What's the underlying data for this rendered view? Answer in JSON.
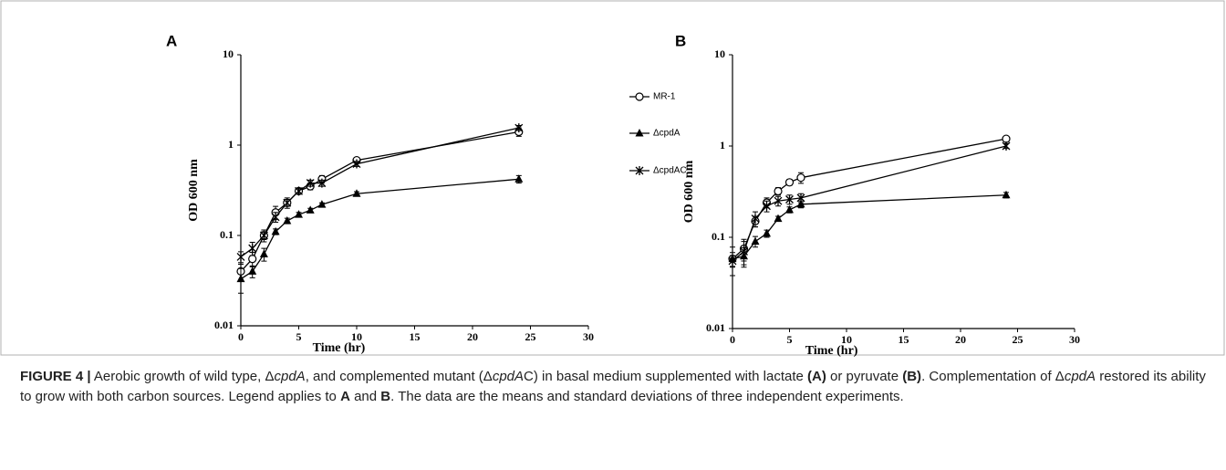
{
  "chart_data": [
    {
      "type": "line",
      "panel": "A",
      "xlabel": "Time (hr)",
      "ylabel": "OD 600 nm",
      "yscale": "log",
      "xlim": [
        0,
        30
      ],
      "xticks": [
        0,
        5,
        10,
        15,
        20,
        25,
        30
      ],
      "ylim": [
        0.01,
        10
      ],
      "yticks": [
        0.01,
        0.1,
        1,
        10
      ],
      "x": [
        0,
        1,
        2,
        3,
        4,
        5,
        6,
        7,
        10,
        24
      ],
      "legend": "right",
      "series": [
        {
          "name": "MR-1",
          "color": "#000000",
          "marker": "circle",
          "values": [
            0.04,
            0.055,
            0.1,
            0.18,
            0.23,
            0.31,
            0.35,
            0.42,
            0.68,
            1.4
          ],
          "errors": [
            0.008,
            0.01,
            0.015,
            0.03,
            0.03,
            0.02,
            0.03,
            0.04,
            0.05,
            0.15
          ]
        },
        {
          "name": "ΔcpdA",
          "color": "#000000",
          "marker": "triangle",
          "values": [
            0.033,
            0.04,
            0.062,
            0.11,
            0.145,
            0.17,
            0.19,
            0.22,
            0.29,
            0.42
          ],
          "errors": [
            0.01,
            0.006,
            0.01,
            0.008,
            0.01,
            0.01,
            0.01,
            0.01,
            0.015,
            0.04
          ]
        },
        {
          "name": "ΔcpdAC",
          "color": "#000000",
          "marker": "star",
          "values": [
            0.058,
            0.072,
            0.1,
            0.16,
            0.23,
            0.31,
            0.38,
            0.38,
            0.62,
            1.55
          ],
          "errors": [
            0.008,
            0.012,
            0.01,
            0.02,
            0.02,
            0.02,
            0.03,
            0.03,
            0.04,
            0.1
          ]
        }
      ]
    },
    {
      "type": "line",
      "panel": "B",
      "xlabel": "Time (hr)",
      "ylabel": "OD 600 nm",
      "yscale": "log",
      "xlim": [
        0,
        30
      ],
      "xticks": [
        0,
        5,
        10,
        15,
        20,
        25,
        30
      ],
      "ylim": [
        0.01,
        10
      ],
      "yticks": [
        0.01,
        0.1,
        1,
        10
      ],
      "x": [
        0,
        1,
        2,
        3,
        4,
        5,
        6,
        24
      ],
      "series": [
        {
          "color": "#000000",
          "marker": "circle",
          "values": [
            0.058,
            0.075,
            0.15,
            0.24,
            0.32,
            0.4,
            0.45,
            1.2
          ],
          "errors": [
            0.01,
            0.02,
            0.02,
            0.03,
            0.03,
            0.03,
            0.06,
            0.06
          ]
        },
        {
          "color": "#000000",
          "marker": "triangle",
          "values": [
            0.058,
            0.062,
            0.09,
            0.11,
            0.16,
            0.2,
            0.23,
            0.29
          ],
          "errors": [
            0.02,
            0.015,
            0.012,
            0.01,
            0.01,
            0.015,
            0.02,
            0.02
          ]
        },
        {
          "color": "#000000",
          "marker": "star",
          "values": [
            0.055,
            0.07,
            0.16,
            0.22,
            0.25,
            0.26,
            0.27,
            1.0
          ],
          "errors": [
            0.008,
            0.02,
            0.03,
            0.03,
            0.03,
            0.03,
            0.03,
            0.06
          ]
        }
      ]
    }
  ],
  "caption": [
    "FIGURE 4 |",
    " Aerobic growth of wild type, Δ",
    "cpdA",
    ", and complemented mutant (Δ",
    "cpdA",
    "C) in basal medium supplemented with lactate ",
    "(A)",
    " or pyruvate ",
    "(B)",
    ". Complementation of Δ",
    "cpdA",
    " restored its ability to grow with both carbon sources. Legend applies to ",
    "A",
    " and ",
    "B",
    ". The data are the means and standard deviations of three independent experiments."
  ]
}
